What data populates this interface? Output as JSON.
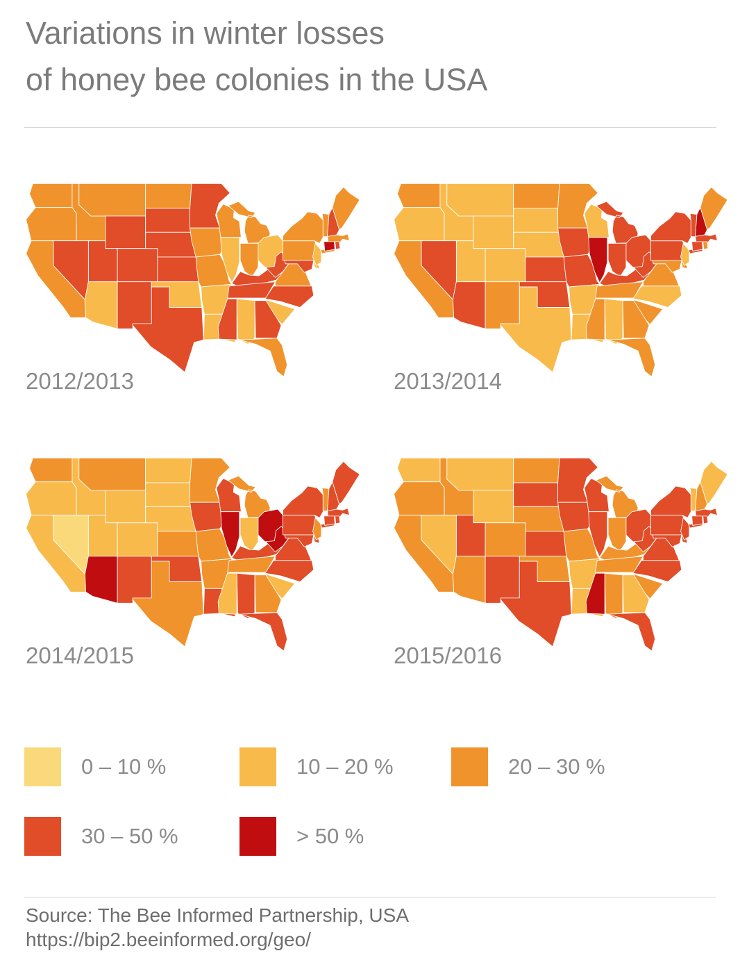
{
  "title": {
    "line1": "Variations in winter losses",
    "line2": "of honey bee colonies in the USA"
  },
  "legend": {
    "items": [
      {
        "key": "0-10",
        "label": "0 – 10 %"
      },
      {
        "key": "10-20",
        "label": "10 – 20 %"
      },
      {
        "key": "20-30",
        "label": "20 – 30 %"
      },
      {
        "key": "30-50",
        "label": "30 – 50 %"
      },
      {
        "key": ">50",
        "label": "> 50 %"
      }
    ]
  },
  "source": {
    "line1": "Source: The Bee Informed Partnership, USA",
    "line2": "https://bip2.beeinformed.org/geo/"
  },
  "chart_data": {
    "type": "choropleth",
    "title": "Variations in winter losses of honey bee colonies in the USA",
    "unit": "winter colony loss, percent of colonies",
    "categories": [
      "0 – 10 %",
      "10 – 20 %",
      "20 – 30 %",
      "30 – 50 %",
      "> 50 %"
    ],
    "category_colors": {
      "0-10": "#FAD97A",
      "10-20": "#F8BA4B",
      "20-30": "#F0932C",
      "30-50": "#E14C29",
      ">50": "#C00D10"
    },
    "maps": [
      {
        "label": "2012/2013",
        "states": {
          "WA": "20-30",
          "OR": "20-30",
          "CA": "20-30",
          "NV": "30-50",
          "ID": "20-30",
          "MT": "20-30",
          "WY": "30-50",
          "UT": "30-50",
          "CO": "30-50",
          "AZ": "10-20",
          "NM": "30-50",
          "ND": "20-30",
          "SD": "30-50",
          "NE": "30-50",
          "KS": "30-50",
          "OK": "10-20",
          "TX": "30-50",
          "MN": "30-50",
          "IA": "20-30",
          "MO": "20-30",
          "AR": "10-20",
          "LA": "10-20",
          "WI": "20-30",
          "IL": "10-20",
          "MI": "20-30",
          "IN": "20-30",
          "OH": "10-20",
          "KY": "30-50",
          "TN": "30-50",
          "MS": "30-50",
          "AL": "10-20",
          "GA": "30-50",
          "FL": "20-30",
          "SC": "10-20",
          "NC": "30-50",
          "VA": "20-30",
          "WV": "30-50",
          "MD": "30-50",
          "DE": "10-20",
          "PA": "20-30",
          "NJ": "10-20",
          "NY": "20-30",
          "VT": "20-30",
          "NH": "30-50",
          "ME": "20-30",
          "MA": "20-30",
          "CT": ">50",
          "RI": "30-50"
        }
      },
      {
        "label": "2013/2014",
        "states": {
          "WA": "20-30",
          "OR": "10-20",
          "CA": "20-30",
          "NV": "30-50",
          "ID": "10-20",
          "MT": "10-20",
          "WY": "10-20",
          "UT": "10-20",
          "CO": "10-20",
          "AZ": "30-50",
          "NM": "20-30",
          "ND": "20-30",
          "SD": "10-20",
          "NE": "10-20",
          "KS": "30-50",
          "OK": "30-50",
          "TX": "10-20",
          "MN": "20-30",
          "IA": "30-50",
          "MO": "30-50",
          "AR": "10-20",
          "LA": "10-20",
          "WI": "10-20",
          "IL": ">50",
          "MI": "30-50",
          "IN": "30-50",
          "OH": "30-50",
          "KY": "30-50",
          "TN": "20-30",
          "MS": "20-30",
          "AL": "10-20",
          "GA": "20-30",
          "FL": "20-30",
          "SC": "20-30",
          "NC": "10-20",
          "VA": "20-30",
          "WV": "30-50",
          "MD": "20-30",
          "DE": "20-30",
          "PA": "30-50",
          "NJ": "10-20",
          "NY": "30-50",
          "VT": "30-50",
          "NH": ">50",
          "ME": "20-30",
          "MA": "30-50",
          "CT": "30-50",
          "RI": "20-30"
        }
      },
      {
        "label": "2014/2015",
        "states": {
          "WA": "20-30",
          "OR": "10-20",
          "CA": "10-20",
          "NV": "0-10",
          "ID": "10-20",
          "MT": "20-30",
          "WY": "10-20",
          "UT": "10-20",
          "CO": "10-20",
          "AZ": ">50",
          "NM": "30-50",
          "ND": "10-20",
          "SD": "10-20",
          "NE": "10-20",
          "KS": "20-30",
          "OK": "30-50",
          "TX": "20-30",
          "MN": "20-30",
          "IA": "30-50",
          "MO": "20-30",
          "AR": "20-30",
          "LA": "30-50",
          "WI": "30-50",
          "IL": ">50",
          "MI": "20-30",
          "IN": "10-20",
          "OH": ">50",
          "KY": "30-50",
          "TN": "20-30",
          "MS": "10-20",
          "AL": "30-50",
          "GA": "20-30",
          "FL": "30-50",
          "SC": "10-20",
          "NC": "30-50",
          "VA": "30-50",
          "WV": ">50",
          "MD": "30-50",
          "DE": "30-50",
          "PA": "30-50",
          "NJ": "20-30",
          "NY": "30-50",
          "VT": "20-30",
          "NH": "30-50",
          "ME": "30-50",
          "MA": "30-50",
          "CT": "30-50",
          "RI": "30-50"
        }
      },
      {
        "label": "2015/2016",
        "states": {
          "WA": "10-20",
          "OR": "20-30",
          "CA": "20-30",
          "NV": "10-20",
          "ID": "20-30",
          "MT": "10-20",
          "WY": "10-20",
          "UT": "30-50",
          "CO": "20-30",
          "AZ": "20-30",
          "NM": "30-50",
          "ND": "20-30",
          "SD": "30-50",
          "NE": "20-30",
          "KS": "30-50",
          "OK": "20-30",
          "TX": "30-50",
          "MN": "30-50",
          "IA": "30-50",
          "MO": "20-30",
          "AR": "10-20",
          "LA": "10-20",
          "WI": "30-50",
          "IL": "30-50",
          "MI": "20-30",
          "IN": "20-30",
          "OH": "30-50",
          "KY": "20-30",
          "TN": "20-30",
          "MS": ">50",
          "AL": "20-30",
          "GA": "10-20",
          "FL": "30-50",
          "SC": "20-30",
          "NC": "30-50",
          "VA": "30-50",
          "WV": "30-50",
          "MD": "30-50",
          "DE": "30-50",
          "PA": "30-50",
          "NJ": "30-50",
          "NY": "30-50",
          "VT": "10-20",
          "NH": "20-30",
          "ME": "10-20",
          "MA": "30-50",
          "CT": "30-50",
          "RI": "30-50"
        }
      }
    ]
  }
}
